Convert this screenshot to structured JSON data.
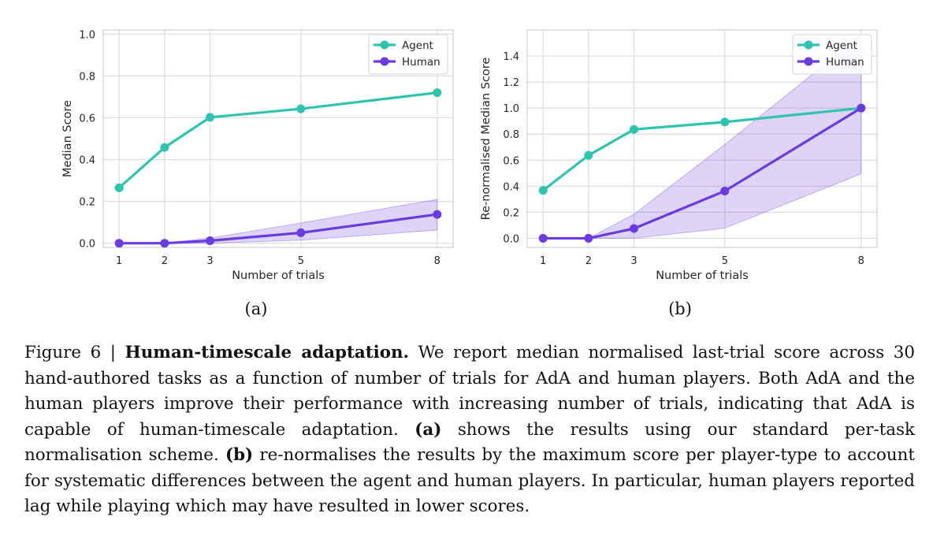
{
  "chart_data": [
    {
      "type": "line",
      "panel": "a",
      "xlabel": "Number of trials",
      "ylabel": "Median Score",
      "x": [
        1,
        2,
        3,
        5,
        8
      ],
      "xticks": [
        "1",
        "2",
        "3",
        "5",
        "8"
      ],
      "xlim": [
        0.65,
        8.35
      ],
      "ylim": [
        -0.02,
        1.02
      ],
      "yticks": [
        "0.0",
        "0.2",
        "0.4",
        "0.6",
        "0.8",
        "1.0"
      ],
      "ytick_values": [
        0.0,
        0.2,
        0.4,
        0.6,
        0.8,
        1.0
      ],
      "grid": true,
      "legend_position": "top-right",
      "series": [
        {
          "name": "Agent",
          "color": "#2ec4b0",
          "values": [
            0.265,
            0.458,
            0.602,
            0.643,
            0.72
          ]
        },
        {
          "name": "Human",
          "color": "#6a3be0",
          "values": [
            0.0,
            0.0,
            0.012,
            0.05,
            0.138
          ],
          "band_lower": [
            0.0,
            0.0,
            0.0,
            0.015,
            0.063
          ],
          "band_upper": [
            0.0,
            0.0,
            0.025,
            0.097,
            0.21
          ]
        }
      ]
    },
    {
      "type": "line",
      "panel": "b",
      "xlabel": "Number of trials",
      "ylabel": "Re-normalised Median Score",
      "x": [
        1,
        2,
        3,
        5,
        8
      ],
      "xticks": [
        "1",
        "2",
        "3",
        "5",
        "8"
      ],
      "xlim": [
        0.65,
        8.35
      ],
      "ylim": [
        -0.07,
        1.6
      ],
      "yticks": [
        "0.0",
        "0.2",
        "0.4",
        "0.6",
        "0.8",
        "1.0",
        "1.2",
        "1.4"
      ],
      "ytick_values": [
        0.0,
        0.2,
        0.4,
        0.6,
        0.8,
        1.0,
        1.2,
        1.4
      ],
      "grid": true,
      "legend_position": "top-right",
      "series": [
        {
          "name": "Agent",
          "color": "#2ec4b0",
          "values": [
            0.368,
            0.637,
            0.836,
            0.893,
            1.0
          ]
        },
        {
          "name": "Human",
          "color": "#6a3be0",
          "values": [
            0.0,
            0.0,
            0.075,
            0.363,
            1.0
          ],
          "band_lower": [
            0.0,
            0.0,
            0.0,
            0.078,
            0.495
          ],
          "band_upper": [
            0.0,
            0.0,
            0.185,
            0.72,
            1.56
          ]
        }
      ]
    }
  ],
  "subcaptions": {
    "a": "(a)",
    "b": "(b)"
  },
  "caption": {
    "figure_label": "Figure 6 | ",
    "title": "Human-timescale adaptation.",
    "text1": " We report median normalised last-trial score across 30 hand-authored tasks as a function of number of trials for AdA and human players. Both AdA and the human players improve their performance with increasing number of trials, indicating that AdA is capable of human-timescale adaptation. ",
    "ref_a": "(a)",
    "text2": " shows the results using our standard per-task normalisation scheme. ",
    "ref_b": "(b)",
    "text3": " re-normalises the results by the maximum score per player-type to account for systematic differences between the agent and human players.  In particular, human players reported lag while playing which may have resulted in lower scores."
  }
}
